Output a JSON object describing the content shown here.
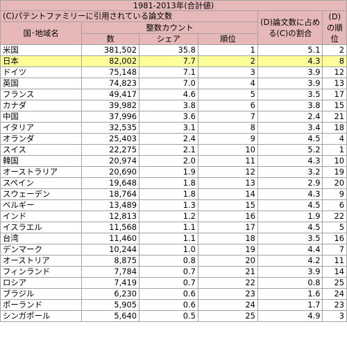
{
  "header": {
    "title": "1981-2013年(合計値)",
    "group_c": "(C)パテントファミリーに引用されている論文数",
    "country": "国･地域名",
    "sub_c": "整数カウント",
    "col_count": "数",
    "col_share": "シェア",
    "col_rank": "順位",
    "col_d": "(D)論文数に占める(C)の割合",
    "col_d_rank": "(D)の順位"
  },
  "highlight_color": "#ffff99",
  "header_color": "#e6b9b8",
  "rows": [
    {
      "name": "米国",
      "count": "381,502",
      "share": "35.8",
      "rank": "1",
      "ratio": "5.1",
      "ratio_rank": "2"
    },
    {
      "name": "日本",
      "count": "82,002",
      "share": "7.7",
      "rank": "2",
      "ratio": "4.3",
      "ratio_rank": "8"
    },
    {
      "name": "ドイツ",
      "count": "75,148",
      "share": "7.1",
      "rank": "3",
      "ratio": "3.9",
      "ratio_rank": "12"
    },
    {
      "name": "英国",
      "count": "74,823",
      "share": "7.0",
      "rank": "4",
      "ratio": "3.9",
      "ratio_rank": "13"
    },
    {
      "name": "フランス",
      "count": "49,417",
      "share": "4.6",
      "rank": "5",
      "ratio": "3.5",
      "ratio_rank": "17"
    },
    {
      "name": "カナダ",
      "count": "39,982",
      "share": "3.8",
      "rank": "6",
      "ratio": "3.8",
      "ratio_rank": "15"
    },
    {
      "name": "中国",
      "count": "37,996",
      "share": "3.6",
      "rank": "7",
      "ratio": "2.4",
      "ratio_rank": "21"
    },
    {
      "name": "イタリア",
      "count": "32,535",
      "share": "3.1",
      "rank": "8",
      "ratio": "3.4",
      "ratio_rank": "18"
    },
    {
      "name": "オランダ",
      "count": "25,403",
      "share": "2.4",
      "rank": "9",
      "ratio": "4.5",
      "ratio_rank": "4"
    },
    {
      "name": "スイス",
      "count": "22,275",
      "share": "2.1",
      "rank": "10",
      "ratio": "5.2",
      "ratio_rank": "1"
    },
    {
      "name": "韓国",
      "count": "20,974",
      "share": "2.0",
      "rank": "11",
      "ratio": "4.3",
      "ratio_rank": "10"
    },
    {
      "name": "オーストラリア",
      "count": "20,690",
      "share": "1.9",
      "rank": "12",
      "ratio": "3.2",
      "ratio_rank": "19"
    },
    {
      "name": "スペイン",
      "count": "19,648",
      "share": "1.8",
      "rank": "13",
      "ratio": "2.9",
      "ratio_rank": "20"
    },
    {
      "name": "スウェーデン",
      "count": "18,764",
      "share": "1.8",
      "rank": "14",
      "ratio": "4.3",
      "ratio_rank": "9"
    },
    {
      "name": "ベルギー",
      "count": "13,489",
      "share": "1.3",
      "rank": "15",
      "ratio": "4.5",
      "ratio_rank": "6"
    },
    {
      "name": "インド",
      "count": "12,813",
      "share": "1.2",
      "rank": "16",
      "ratio": "1.9",
      "ratio_rank": "22"
    },
    {
      "name": "イスラエル",
      "count": "11,568",
      "share": "1.1",
      "rank": "17",
      "ratio": "4.5",
      "ratio_rank": "5"
    },
    {
      "name": "台湾",
      "count": "11,460",
      "share": "1.1",
      "rank": "18",
      "ratio": "3.5",
      "ratio_rank": "16"
    },
    {
      "name": "デンマーク",
      "count": "10,244",
      "share": "1.0",
      "rank": "19",
      "ratio": "4.4",
      "ratio_rank": "7"
    },
    {
      "name": "オーストリア",
      "count": "8,875",
      "share": "0.8",
      "rank": "20",
      "ratio": "4.2",
      "ratio_rank": "11"
    },
    {
      "name": "フィンランド",
      "count": "7,784",
      "share": "0.7",
      "rank": "21",
      "ratio": "3.9",
      "ratio_rank": "14"
    },
    {
      "name": "ロシア",
      "count": "7,419",
      "share": "0.7",
      "rank": "22",
      "ratio": "0.8",
      "ratio_rank": "25"
    },
    {
      "name": "ブラジル",
      "count": "6,230",
      "share": "0.6",
      "rank": "23",
      "ratio": "1.6",
      "ratio_rank": "24"
    },
    {
      "name": "ポーランド",
      "count": "5,905",
      "share": "0.6",
      "rank": "24",
      "ratio": "1.7",
      "ratio_rank": "23"
    },
    {
      "name": "シンガポール",
      "count": "5,640",
      "share": "0.5",
      "rank": "25",
      "ratio": "4.9",
      "ratio_rank": "3"
    }
  ]
}
